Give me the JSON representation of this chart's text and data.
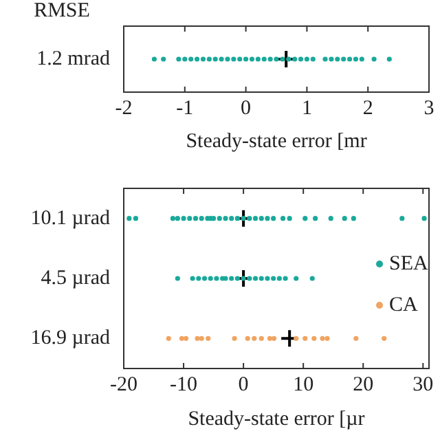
{
  "chart_data": [
    {
      "type": "scatter",
      "orientation": "horizontal",
      "ylabel": "RMSE",
      "xlabel": "Steady-state error [mr",
      "categories": [
        "1.2 mrad"
      ],
      "xlim": [
        -2,
        3
      ],
      "xticks": [
        -2,
        -1,
        0,
        1,
        2,
        3
      ],
      "grid": false,
      "legend": false,
      "marker": "circle",
      "series": [
        {
          "color": "#1aa99a",
          "x": [
            "1.2 mrad",
            "1.2 mrad",
            "1.2 mrad",
            "1.2 mrad",
            "1.2 mrad",
            "1.2 mrad",
            "1.2 mrad",
            "1.2 mrad",
            "1.2 mrad",
            "1.2 mrad",
            "1.2 mrad",
            "1.2 mrad",
            "1.2 mrad",
            "1.2 mrad",
            "1.2 mrad",
            "1.2 mrad",
            "1.2 mrad",
            "1.2 mrad",
            "1.2 mrad",
            "1.2 mrad",
            "1.2 mrad",
            "1.2 mrad",
            "1.2 mrad",
            "1.2 mrad",
            "1.2 mrad",
            "1.2 mrad",
            "1.2 mrad",
            "1.2 mrad",
            "1.2 mrad",
            "1.2 mrad",
            "1.2 mrad",
            "1.2 mrad",
            "1.2 mrad",
            "1.2 mrad"
          ],
          "values": [
            -1.5,
            -1.35,
            -1.1,
            -1.0,
            -0.9,
            -0.8,
            -0.7,
            -0.6,
            -0.5,
            -0.4,
            -0.3,
            -0.2,
            -0.1,
            0,
            0.1,
            0.2,
            0.3,
            0.4,
            0.5,
            0.6,
            0.7,
            0.8,
            0.9,
            1.0,
            1.1,
            1.3,
            1.4,
            1.5,
            1.6,
            1.7,
            1.8,
            1.9,
            2.1,
            2.35
          ]
        },
        {
          "color": "#000000",
          "marker": "cross",
          "x": [
            "1.2 mrad"
          ],
          "values": [
            0.66
          ]
        }
      ]
    },
    {
      "type": "scatter",
      "orientation": "horizontal",
      "xlabel": "Steady-state error [µr",
      "categories": [
        "10.1 µrad",
        "4.5 µrad",
        "16.9 µrad"
      ],
      "xlim": [
        -20,
        31
      ],
      "xticks": [
        -20,
        -10,
        0,
        10,
        20,
        30
      ],
      "grid": false,
      "legend": "right",
      "marker": "circle",
      "series": [
        {
          "name": "SEA",
          "color": "#1aa99a",
          "x": [
            "10.1 µrad",
            "10.1 µrad",
            "10.1 µrad",
            "10.1 µrad",
            "10.1 µrad",
            "10.1 µrad",
            "10.1 µrad",
            "10.1 µrad",
            "10.1 µrad",
            "10.1 µrad",
            "10.1 µrad",
            "10.1 µrad",
            "10.1 µrad",
            "10.1 µrad",
            "10.1 µrad",
            "10.1 µrad",
            "10.1 µrad",
            "10.1 µrad",
            "10.1 µrad",
            "10.1 µrad",
            "10.1 µrad",
            "10.1 µrad",
            "10.1 µrad",
            "10.1 µrad",
            "10.1 µrad",
            "10.1 µrad",
            "10.1 µrad",
            "10.1 µrad",
            "10.1 µrad",
            "10.1 µrad",
            "4.5 µrad",
            "4.5 µrad",
            "4.5 µrad",
            "4.5 µrad",
            "4.5 µrad",
            "4.5 µrad",
            "4.5 µrad",
            "4.5 µrad",
            "4.5 µrad",
            "4.5 µrad",
            "4.5 µrad",
            "4.5 µrad",
            "4.5 µrad",
            "4.5 µrad",
            "4.5 µrad",
            "4.5 µrad",
            "4.5 µrad",
            "4.5 µrad",
            "4.5 µrad",
            "4.5 µrad"
          ],
          "values": [
            -19.1,
            -18,
            -11.8,
            -11,
            -10,
            -9,
            -8,
            -7,
            -6,
            -5.5,
            -5,
            -4,
            -3,
            -2,
            -1,
            0,
            1,
            2,
            3,
            4,
            5,
            6.6,
            7.7,
            10.3,
            12,
            14.6,
            16.9,
            18.4,
            26.5,
            30.2,
            -11,
            -8.5,
            -7.5,
            -6.5,
            -5.5,
            -4.5,
            -3.5,
            -3,
            -2,
            -1,
            0,
            1,
            2,
            3,
            4,
            5,
            6,
            7,
            8.8,
            11.5
          ]
        },
        {
          "name": "CA",
          "color": "#f0a461",
          "x": [
            "16.9 µrad",
            "16.9 µrad",
            "16.9 µrad",
            "16.9 µrad",
            "16.9 µrad",
            "16.9 µrad",
            "16.9 µrad",
            "16.9 µrad",
            "16.9 µrad",
            "16.9 µrad",
            "16.9 µrad",
            "16.9 µrad",
            "16.9 µrad",
            "16.9 µrad",
            "16.9 µrad",
            "16.9 µrad",
            "16.9 µrad",
            "16.9 µrad",
            "16.9 µrad"
          ],
          "values": [
            -12.5,
            -10.3,
            -9.6,
            -7.7,
            -7,
            -5.9,
            -1.5,
            0.7,
            1.8,
            3,
            4.4,
            5.1,
            8.8,
            10.3,
            11.8,
            13.2,
            14,
            18.8,
            23.5
          ]
        },
        {
          "color": "#000000",
          "marker": "cross",
          "x": [
            "10.1 µrad",
            "4.5 µrad",
            "16.9 µrad"
          ],
          "values": [
            0,
            0,
            7.7
          ]
        }
      ]
    }
  ]
}
